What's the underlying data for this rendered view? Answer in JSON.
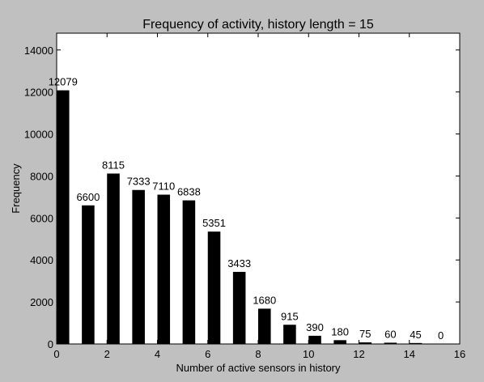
{
  "chart_data": {
    "type": "bar",
    "title": "Frequency of activity, history length = 15",
    "xlabel": "Number of active sensors in history",
    "ylabel": "Frequency",
    "x": [
      0,
      1,
      2,
      3,
      4,
      5,
      6,
      7,
      8,
      9,
      10,
      11,
      12,
      13,
      14,
      15
    ],
    "values": [
      12079,
      6600,
      8115,
      7333,
      7110,
      6838,
      5351,
      3433,
      1680,
      915,
      390,
      180,
      75,
      60,
      45,
      0
    ],
    "data_labels": [
      "12079",
      "6600",
      "8115",
      "7333",
      "7110",
      "6838",
      "5351",
      "3433",
      "1680",
      "915",
      "390",
      "180",
      "75",
      "60",
      "45",
      "0"
    ],
    "xlim": [
      0,
      16
    ],
    "ylim": [
      0,
      14800
    ],
    "xticks": [
      0,
      2,
      4,
      6,
      8,
      10,
      12,
      14,
      16
    ],
    "yticks": [
      0,
      2000,
      4000,
      6000,
      8000,
      10000,
      12000,
      14000
    ],
    "bar_width": 0.5,
    "grid": false,
    "legend": "none",
    "colors": {
      "bar": "#000000",
      "plot_background": "#ffffff",
      "figure_background": "#c0c0c0"
    }
  }
}
